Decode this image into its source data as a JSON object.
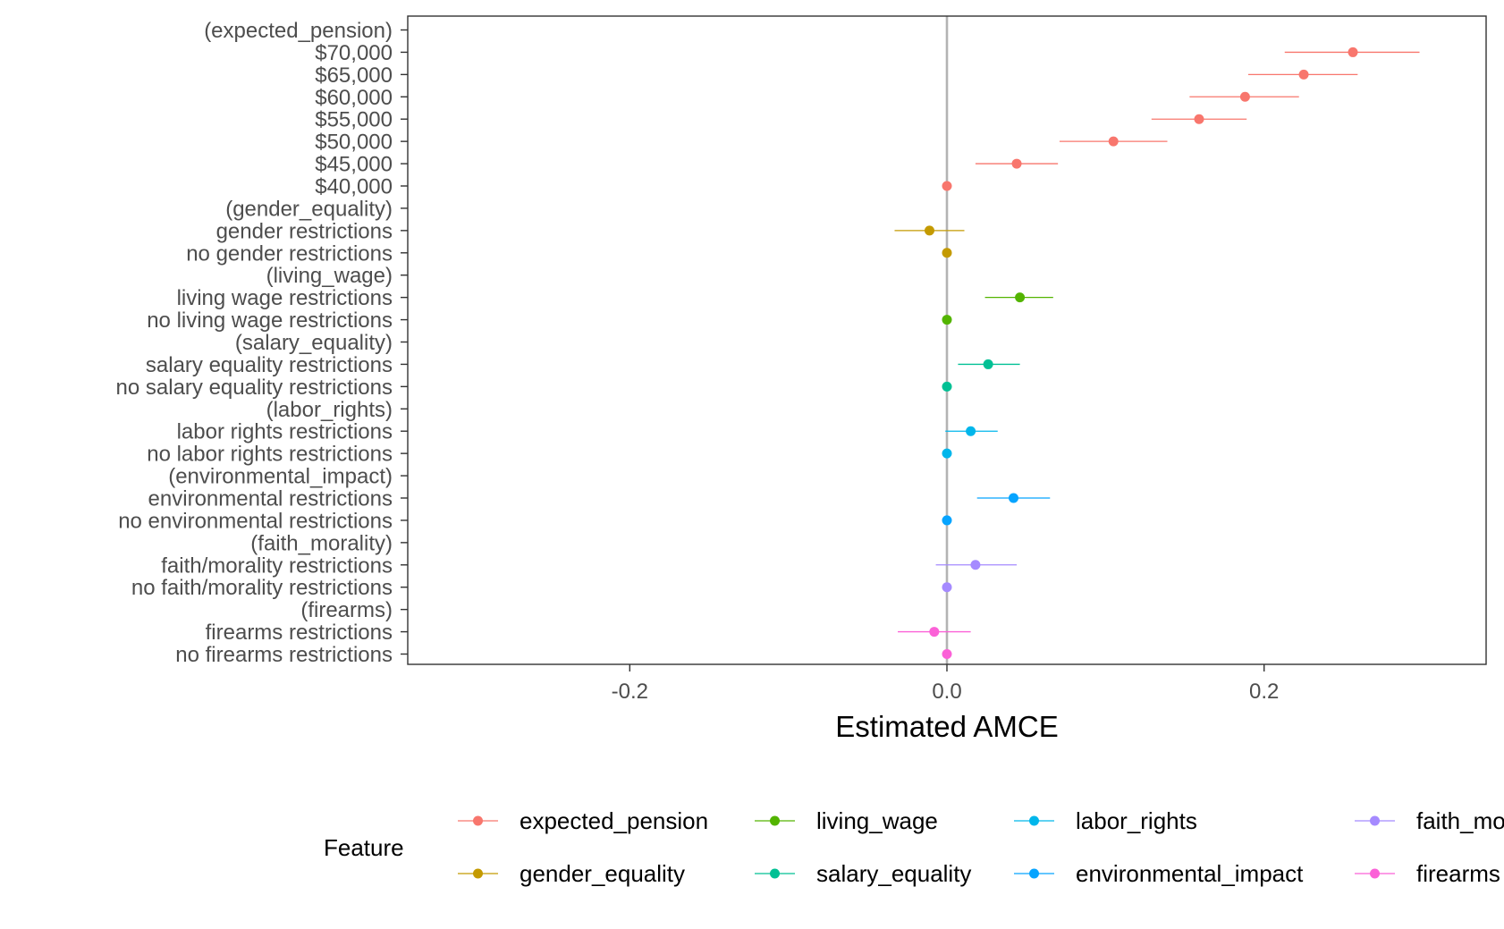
{
  "chart_data": {
    "type": "scatter",
    "subtype": "coefficient-plot-with-confidence-intervals",
    "xlabel": "Estimated AMCE",
    "ylabel": "",
    "xlim": [
      -0.34,
      0.34
    ],
    "x_ticks": [
      -0.2,
      0.0,
      0.2
    ],
    "x_tick_labels": [
      "-0.2",
      "0.0",
      "0.2"
    ],
    "reference_line": 0,
    "grid": false,
    "legend": {
      "title": "Feature",
      "position": "bottom",
      "columns": 4
    },
    "series": [
      {
        "name": "expected_pension",
        "color": "#F8766D",
        "header": "(expected_pension)",
        "levels": [
          {
            "label": "$70,000",
            "estimate": 0.256,
            "lower": 0.213,
            "upper": 0.298
          },
          {
            "label": "$65,000",
            "estimate": 0.225,
            "lower": 0.19,
            "upper": 0.259
          },
          {
            "label": "$60,000",
            "estimate": 0.188,
            "lower": 0.153,
            "upper": 0.222
          },
          {
            "label": "$55,000",
            "estimate": 0.159,
            "lower": 0.129,
            "upper": 0.189
          },
          {
            "label": "$50,000",
            "estimate": 0.105,
            "lower": 0.071,
            "upper": 0.139
          },
          {
            "label": "$45,000",
            "estimate": 0.044,
            "lower": 0.018,
            "upper": 0.07
          },
          {
            "label": "$40,000",
            "estimate": 0.0,
            "lower": null,
            "upper": null
          }
        ]
      },
      {
        "name": "gender_equality",
        "color": "#C49A00",
        "header": "(gender_equality)",
        "levels": [
          {
            "label": "gender restrictions",
            "estimate": -0.011,
            "lower": -0.033,
            "upper": 0.011
          },
          {
            "label": "no gender restrictions",
            "estimate": 0.0,
            "lower": null,
            "upper": null
          }
        ]
      },
      {
        "name": "living_wage",
        "color": "#53B400",
        "header": "(living_wage)",
        "levels": [
          {
            "label": "living wage restrictions",
            "estimate": 0.046,
            "lower": 0.024,
            "upper": 0.067
          },
          {
            "label": "no living wage restrictions",
            "estimate": 0.0,
            "lower": null,
            "upper": null
          }
        ]
      },
      {
        "name": "salary_equality",
        "color": "#00C094",
        "header": "(salary_equality)",
        "levels": [
          {
            "label": "salary equality restrictions",
            "estimate": 0.026,
            "lower": 0.007,
            "upper": 0.046
          },
          {
            "label": "no salary equality restrictions",
            "estimate": 0.0,
            "lower": null,
            "upper": null
          }
        ]
      },
      {
        "name": "labor_rights",
        "color": "#00B6EB",
        "header": "(labor_rights)",
        "levels": [
          {
            "label": "labor rights restrictions",
            "estimate": 0.015,
            "lower": -0.001,
            "upper": 0.032
          },
          {
            "label": "no labor rights restrictions",
            "estimate": 0.0,
            "lower": null,
            "upper": null
          }
        ]
      },
      {
        "name": "environmental_impact",
        "color": "#06A4FF",
        "header": "(environmental_impact)",
        "levels": [
          {
            "label": "environmental restrictions",
            "estimate": 0.042,
            "lower": 0.019,
            "upper": 0.065
          },
          {
            "label": "no environmental restrictions",
            "estimate": 0.0,
            "lower": null,
            "upper": null
          }
        ]
      },
      {
        "name": "faith_morality",
        "color": "#A58AFF",
        "header": "(faith_morality)",
        "levels": [
          {
            "label": "faith/morality restrictions",
            "estimate": 0.018,
            "lower": -0.007,
            "upper": 0.044
          },
          {
            "label": "no faith/morality restrictions",
            "estimate": 0.0,
            "lower": null,
            "upper": null
          }
        ]
      },
      {
        "name": "firearms",
        "color": "#FB61D7",
        "header": "(firearms)",
        "levels": [
          {
            "label": "firearms restrictions",
            "estimate": -0.008,
            "lower": -0.031,
            "upper": 0.015
          },
          {
            "label": "no firearms restrictions",
            "estimate": 0.0,
            "lower": null,
            "upper": null
          }
        ]
      }
    ]
  }
}
